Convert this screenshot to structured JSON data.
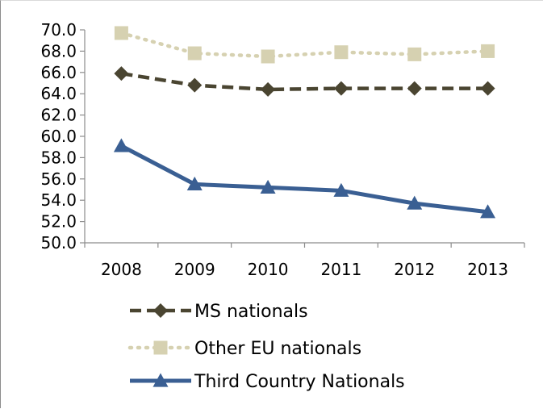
{
  "chart_data": {
    "type": "line",
    "title": "",
    "xlabel": "",
    "ylabel": "",
    "categories": [
      "2008",
      "2009",
      "2010",
      "2011",
      "2012",
      "2013"
    ],
    "ylim": [
      50.0,
      70.0
    ],
    "ytick_step": 2.0,
    "ytick_labels": [
      "50.0",
      "52.0",
      "54.0",
      "56.0",
      "58.0",
      "60.0",
      "62.0",
      "64.0",
      "66.0",
      "68.0",
      "70.0"
    ],
    "grid": false,
    "legend_position": "bottom",
    "series": [
      {
        "name": "MS nationals",
        "values": [
          65.9,
          64.8,
          64.4,
          64.5,
          64.5,
          64.5
        ],
        "color": "#4a4531",
        "line_style": "dashed",
        "marker": "diamond"
      },
      {
        "name": "Other EU nationals",
        "values": [
          69.7,
          67.8,
          67.5,
          67.9,
          67.7,
          68.0
        ],
        "color": "#d6d1b1",
        "line_style": "dotted",
        "marker": "square"
      },
      {
        "name": "Third Country Nationals",
        "values": [
          59.1,
          55.5,
          55.2,
          54.9,
          53.7,
          52.9
        ],
        "color": "#3a5f93",
        "line_style": "solid",
        "marker": "triangle"
      }
    ]
  }
}
